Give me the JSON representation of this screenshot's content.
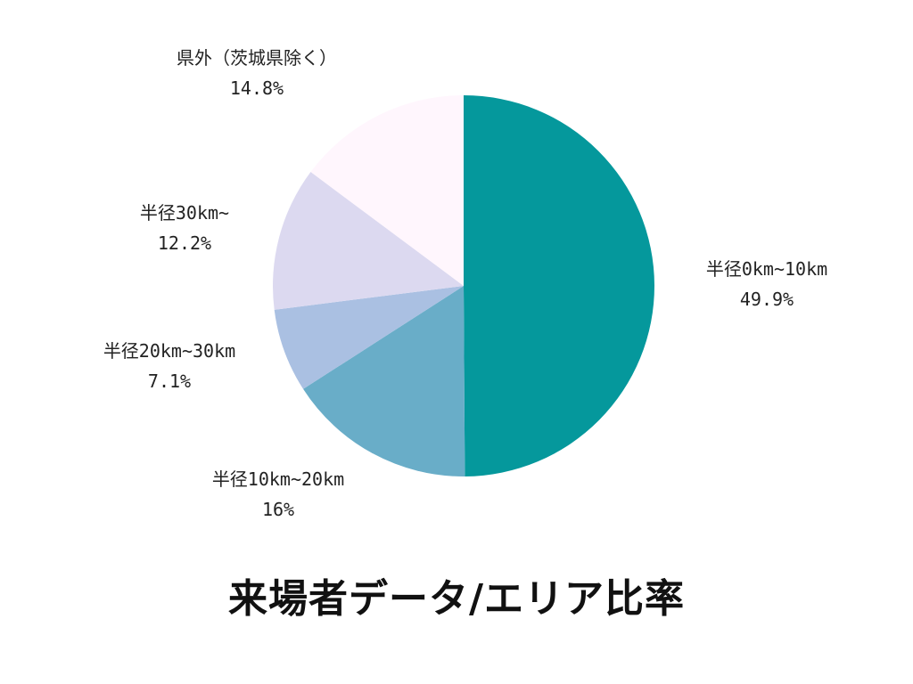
{
  "chart_data": {
    "type": "pie",
    "title": "来場者データ/エリア比率",
    "start_angle": "12 o'clock, clockwise",
    "slices": [
      {
        "label": "半径0km~10km",
        "value": 49.9,
        "display": "49.9%",
        "color": "#05989c"
      },
      {
        "label": "半径10km~20km",
        "value": 16.0,
        "display": "16%",
        "color": "#69adc8"
      },
      {
        "label": "半径20km~30km",
        "value": 7.1,
        "display": "7.1%",
        "color": "#aac0e2"
      },
      {
        "label": "半径30km~",
        "value": 12.2,
        "display": "12.2%",
        "color": "#dcd9f0"
      },
      {
        "label": "県外（茨城県除く）",
        "value": 14.8,
        "display": "14.8%",
        "color": "#fff6fd"
      }
    ],
    "legend": "none (labels placed outside slices)"
  },
  "labels": [
    {
      "name": "半径0km~10km",
      "pct": "49.9%"
    },
    {
      "name": "半径10km~20km",
      "pct": "16%"
    },
    {
      "name": "半径20km~30km",
      "pct": "7.1%"
    },
    {
      "name": "半径30km~",
      "pct": "12.2%"
    },
    {
      "name": "県外（茨城県除く）",
      "pct": "14.8%"
    }
  ],
  "title": "来場者データ/エリア比率"
}
